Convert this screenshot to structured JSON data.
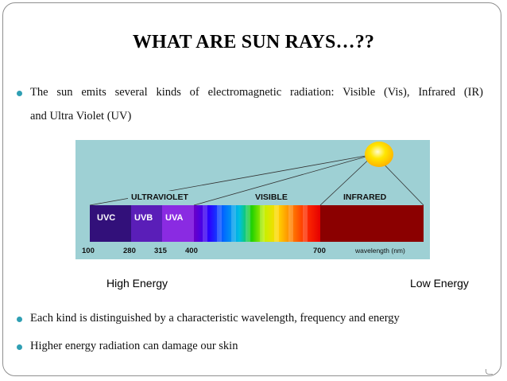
{
  "slide": {
    "title": "WHAT ARE SUN RAYS…??",
    "bullets": [
      {
        "line1": "The sun emits several kinds of electromagnetic radiation: Visible (Vis), Infrared (IR)",
        "line2": "and Ultra Violet (UV)"
      },
      {
        "text": "Each kind is distinguished by a characteristic wavelength, frequency and energy"
      },
      {
        "text": "Higher energy radiation can damage our skin"
      }
    ],
    "energy_labels": {
      "high": "High Energy",
      "low": "Low Energy"
    }
  },
  "figure": {
    "region_labels": {
      "ultraviolet": "ULTRAVIOLET",
      "visible": "VISIBLE",
      "infrared": "INFRARED"
    },
    "band_labels": {
      "uvc": "UVC",
      "uvb": "UVB",
      "uva": "UVA"
    },
    "ticks": [
      "100",
      "280",
      "315",
      "400",
      "700"
    ],
    "axis_label": "wavelength (nm)"
  },
  "colors": {
    "bullet": "#2f9fb3",
    "figure_background": "#9ed0d4",
    "uvc": "#32107a",
    "uvb": "#5a1eb8",
    "uva": "#8a2be2",
    "infrared": "#8b0000"
  }
}
